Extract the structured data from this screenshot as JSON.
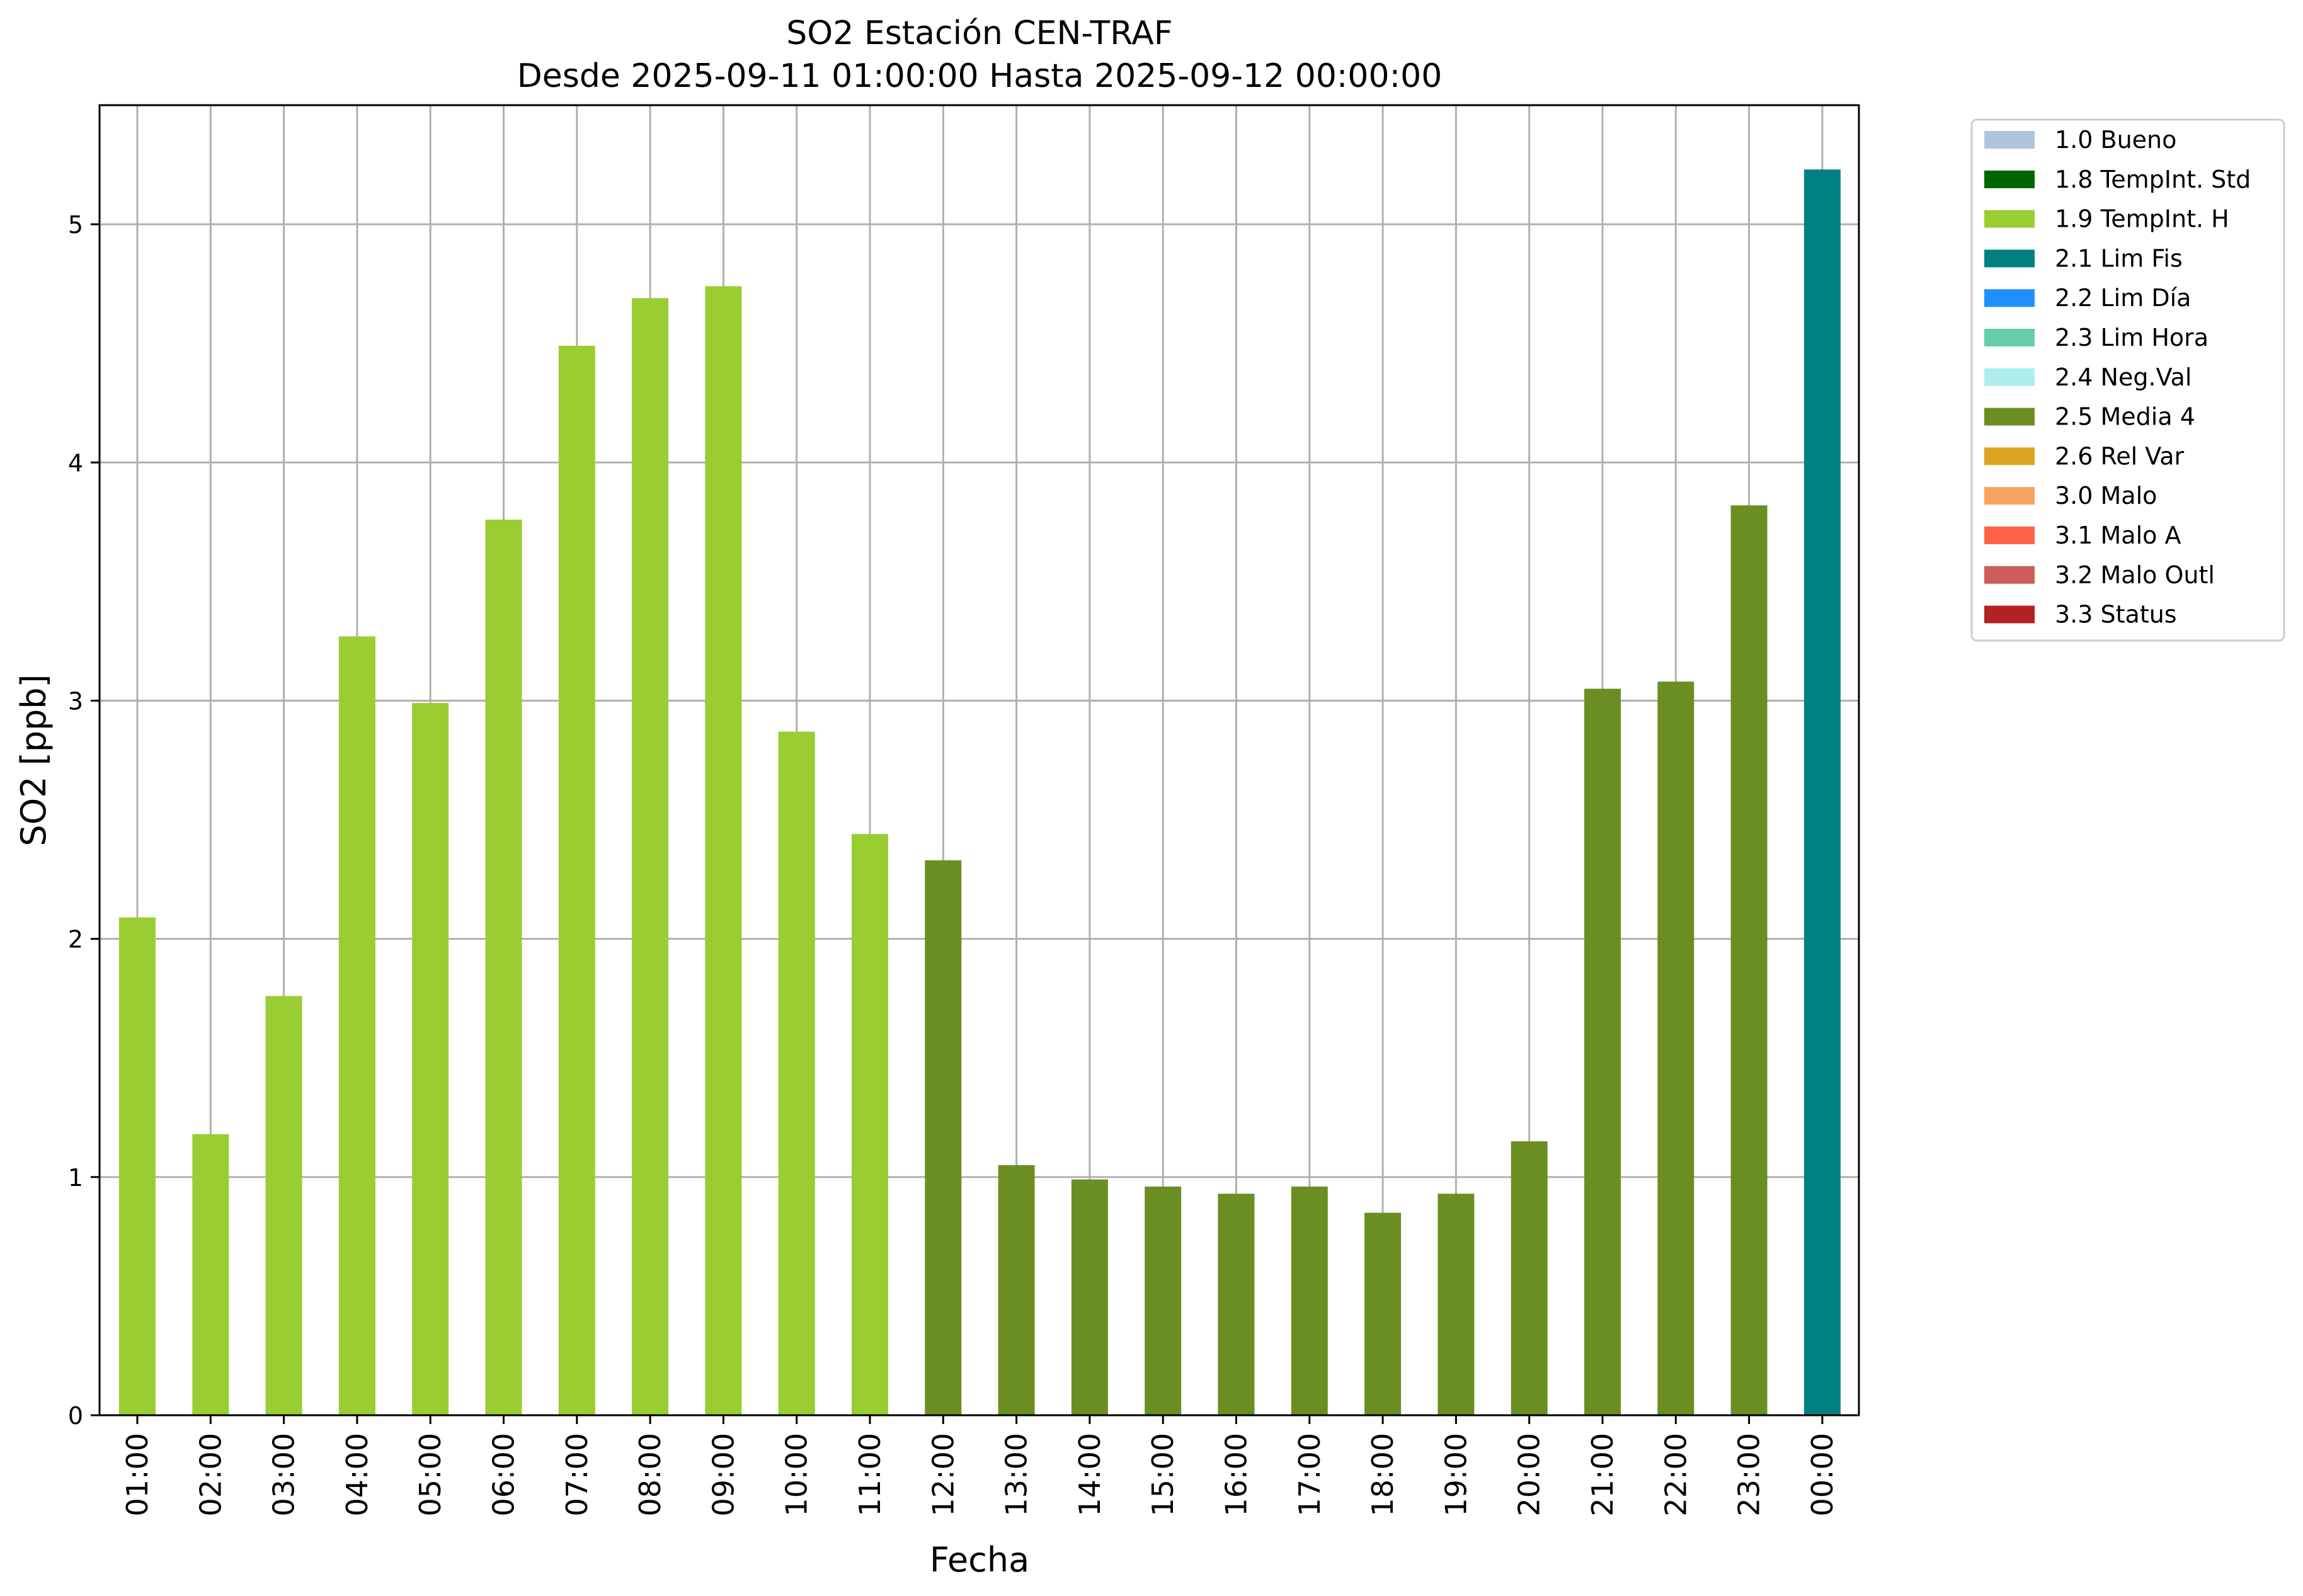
{
  "chart_data": {
    "type": "bar",
    "title": "SO2 Estación CEN-TRAF",
    "subtitle": "Desde 2025-09-11 01:00:00 Hasta 2025-09-12 00:00:00",
    "xlabel": "Fecha",
    "ylabel": "SO2 [ppb]",
    "ylim": [
      0,
      5.5
    ],
    "yticks": [
      0,
      1,
      2,
      3,
      4,
      5
    ],
    "grid": true,
    "legend_position": "outside-top-right",
    "categories": [
      "01:00",
      "02:00",
      "03:00",
      "04:00",
      "05:00",
      "06:00",
      "07:00",
      "08:00",
      "09:00",
      "10:00",
      "11:00",
      "12:00",
      "13:00",
      "14:00",
      "15:00",
      "16:00",
      "17:00",
      "18:00",
      "19:00",
      "20:00",
      "21:00",
      "22:00",
      "23:00",
      "00:00"
    ],
    "values": [
      2.09,
      1.18,
      1.76,
      3.27,
      2.99,
      3.76,
      4.49,
      4.69,
      4.74,
      2.87,
      2.44,
      2.33,
      1.05,
      0.99,
      0.96,
      0.93,
      0.96,
      0.85,
      0.93,
      1.15,
      3.05,
      3.08,
      3.82,
      5.23
    ],
    "flags": [
      "1.9",
      "1.9",
      "1.9",
      "1.9",
      "1.9",
      "1.9",
      "1.9",
      "1.9",
      "1.9",
      "1.9",
      "1.9",
      "2.5",
      "2.5",
      "2.5",
      "2.5",
      "2.5",
      "2.5",
      "2.5",
      "2.5",
      "2.5",
      "2.5",
      "2.5",
      "2.5",
      "2.1"
    ],
    "legend": [
      {
        "code": "1.0",
        "label": "1.0 Bueno",
        "color": "#b0c4de"
      },
      {
        "code": "1.8",
        "label": "1.8 TempInt. Std",
        "color": "#006400"
      },
      {
        "code": "1.9",
        "label": "1.9 TempInt. H",
        "color": "#9acd32"
      },
      {
        "code": "2.1",
        "label": "2.1 Lim Fis",
        "color": "#008080"
      },
      {
        "code": "2.2",
        "label": "2.2 Lim Día",
        "color": "#1e90ff"
      },
      {
        "code": "2.3",
        "label": "2.3 Lim Hora",
        "color": "#66cdaa"
      },
      {
        "code": "2.4",
        "label": "2.4 Neg.Val",
        "color": "#afeeee"
      },
      {
        "code": "2.5",
        "label": "2.5 Media 4",
        "color": "#6b8e23"
      },
      {
        "code": "2.6",
        "label": "2.6 Rel Var",
        "color": "#daa520"
      },
      {
        "code": "3.0",
        "label": "3.0 Malo",
        "color": "#f4a460"
      },
      {
        "code": "3.1",
        "label": "3.1 Malo A",
        "color": "#ff6347"
      },
      {
        "code": "3.2",
        "label": "3.2 Malo Outl",
        "color": "#cd5c5c"
      },
      {
        "code": "3.3",
        "label": "3.3 Status",
        "color": "#b22222"
      }
    ]
  }
}
